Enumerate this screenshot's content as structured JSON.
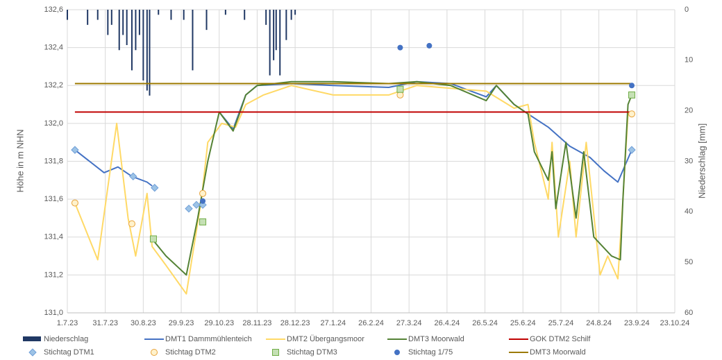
{
  "chart_data": {
    "type": "combo",
    "y_label": "Höhe in m NHN",
    "y2_label": "Niederschlag [mm]",
    "xlim": [
      "1.7.23",
      "23.10.24"
    ],
    "xticks": [
      "1.7.23",
      "31.7.23",
      "30.8.23",
      "29.9.23",
      "29.10.23",
      "28.11.23",
      "28.12.23",
      "27.1.24",
      "26.2.24",
      "27.3.24",
      "26.4.24",
      "26.5.24",
      "25.6.24",
      "25.7.24",
      "24.8.24",
      "23.9.24",
      "23.10.24"
    ],
    "ylim": [
      131.0,
      132.6
    ],
    "yticks": [
      {
        "value": 131.0,
        "label": "131,0"
      },
      {
        "value": 131.2,
        "label": "131,2"
      },
      {
        "value": 131.4,
        "label": "131,4"
      },
      {
        "value": 131.6,
        "label": "131,6"
      },
      {
        "value": 131.8,
        "label": "131,8"
      },
      {
        "value": 132.0,
        "label": "132,0"
      },
      {
        "value": 132.2,
        "label": "132,2"
      },
      {
        "value": 132.4,
        "label": "132,4"
      },
      {
        "value": 132.6,
        "label": "132,6"
      }
    ],
    "y2lim": [
      0,
      60
    ],
    "y2_inverted": true,
    "y2ticks": [
      0,
      10,
      20,
      30,
      40,
      50,
      60
    ],
    "grid": true,
    "series": [
      {
        "name": "Niederschlag",
        "type": "bar",
        "axis": "y2",
        "color": "#203864",
        "x": [
          "1.7.23",
          "17.7.23",
          "25.7.23",
          "2.8.23",
          "5.8.23",
          "11.8.23",
          "14.8.23",
          "17.8.23",
          "21.8.23",
          "24.8.23",
          "27.8.23",
          "30.8.23",
          "2.9.23",
          "4.9.23",
          "11.9.23",
          "21.9.23",
          "1.10.23",
          "8.10.23",
          "19.10.23",
          "3.11.23",
          "18.11.23",
          "5.12.23",
          "8.12.23",
          "11.12.23",
          "13.12.23",
          "16.12.23",
          "21.12.23",
          "25.12.23",
          "28.12.23"
        ],
        "values": [
          2,
          3,
          2,
          5,
          3,
          8,
          5,
          7,
          12,
          8,
          5,
          14,
          16,
          17,
          1,
          2,
          2,
          12,
          4,
          1,
          2,
          3,
          13,
          10,
          8,
          13,
          6,
          2,
          1
        ]
      },
      {
        "name": "DMT1 Dammmühlenteich",
        "type": "line",
        "color": "#4472c4",
        "x": [
          "7.7.23",
          "30.7.23",
          "10.8.23",
          "21.8.23",
          "2.9.23",
          "6.9.23",
          "14.9.23",
          "29.10.23",
          "9.11.23",
          "19.11.23",
          "28.11.23",
          "25.12.23",
          "27.1.24",
          "11.3.24",
          "2.4.24",
          "29.4.24",
          "27.5.24",
          "4.6.24",
          "18.6.24",
          "29.6.24",
          "15.7.24",
          "1.8.24",
          "17.8.24",
          "28.8.24",
          "8.9.24",
          "19.9.24"
        ],
        "values": [
          131.86,
          131.74,
          131.77,
          131.72,
          131.69,
          131.67,
          null,
          132.06,
          131.97,
          132.15,
          132.2,
          132.21,
          132.2,
          132.19,
          132.22,
          132.21,
          132.14,
          132.2,
          132.1,
          132.05,
          131.98,
          131.88,
          131.82,
          131.75,
          131.69,
          131.86
        ]
      },
      {
        "name": "DMT2 Übergangsmoor",
        "type": "line",
        "color": "#ffd966",
        "x": [
          "7.7.23",
          "25.7.23",
          "9.8.23",
          "18.8.23",
          "24.8.23",
          "2.9.23",
          "6.9.23",
          "17.9.23",
          "3.10.23",
          "15.10.23",
          "20.10.23",
          "31.10.23",
          "11.11.23",
          "19.11.23",
          "3.12.23",
          "25.12.23",
          "27.1.24",
          "11.3.24",
          "2.4.24",
          "27.5.24",
          "18.6.24",
          "29.6.24",
          "4.7.24",
          "15.7.24",
          "18.7.24",
          "23.7.24",
          "1.8.24",
          "6.8.24",
          "14.8.24",
          "25.8.24",
          "31.8.24",
          "8.9.24",
          "12.9.24",
          "16.9.24",
          "19.9.24"
        ],
        "values": [
          131.58,
          131.28,
          132.0,
          131.5,
          131.3,
          131.63,
          131.35,
          131.25,
          131.1,
          131.6,
          131.9,
          132.0,
          131.98,
          132.1,
          132.15,
          132.2,
          132.15,
          132.15,
          132.2,
          132.17,
          132.08,
          132.1,
          131.9,
          131.6,
          131.9,
          131.4,
          131.8,
          131.4,
          131.9,
          131.2,
          131.3,
          131.18,
          131.6,
          132.05,
          132.06
        ]
      },
      {
        "name": "DMT3 Moorwald",
        "type": "line",
        "color": "#548235",
        "x": [
          "6.9.23",
          "17.9.23",
          "3.10.23",
          "12.10.23",
          "20.10.23",
          "29.10.23",
          "9.11.23",
          "14.11.23",
          "19.11.23",
          "28.11.23",
          "25.12.23",
          "27.1.24",
          "11.3.24",
          "2.4.24",
          "29.4.24",
          "27.5.24",
          "4.6.24",
          "18.6.24",
          "29.6.24",
          "4.7.24",
          "15.7.24",
          "18.7.24",
          "21.7.24",
          "29.7.24",
          "6.8.24",
          "12.8.24",
          "20.8.24",
          "3.9.24",
          "10.9.24",
          "12.9.24",
          "16.9.24",
          "19.9.24"
        ],
        "values": [
          131.39,
          131.3,
          131.2,
          131.5,
          131.8,
          132.06,
          131.96,
          132.05,
          132.15,
          132.2,
          132.22,
          132.22,
          132.21,
          132.22,
          132.2,
          132.12,
          132.2,
          132.1,
          132.05,
          131.85,
          131.7,
          131.85,
          131.55,
          131.9,
          131.5,
          131.85,
          131.4,
          131.3,
          131.28,
          131.6,
          132.1,
          132.15
        ]
      },
      {
        "name": "GOK DTM2 Schilf",
        "type": "line",
        "color": "#c00000",
        "x": [
          "7.7.23",
          "19.9.24"
        ],
        "values": [
          132.06,
          132.06
        ]
      },
      {
        "name": "Stichtag DTM1",
        "type": "scatter",
        "marker": "diamond",
        "color": "#9dc3e6",
        "x": [
          "7.7.23",
          "22.8.23",
          "8.9.23",
          "5.10.23",
          "11.10.23",
          "16.10.23",
          "19.9.24"
        ],
        "values": [
          131.86,
          131.72,
          131.66,
          131.55,
          131.57,
          131.57,
          131.86
        ]
      },
      {
        "name": "Stichtag DTM2",
        "type": "scatter",
        "marker": "circle",
        "color": "#fff2cc",
        "x": [
          "7.7.23",
          "21.8.23",
          "16.10.23",
          "20.3.24",
          "19.9.24"
        ],
        "values": [
          131.58,
          131.47,
          131.63,
          132.15,
          132.05
        ]
      },
      {
        "name": "Stichtag DTM3",
        "type": "scatter",
        "marker": "square",
        "color": "#c5e0b4",
        "x": [
          "7.9.23",
          "16.10.23",
          "20.3.24",
          "19.9.24"
        ],
        "values": [
          131.39,
          131.48,
          132.18,
          132.15
        ]
      },
      {
        "name": "Stichtag 1/75",
        "type": "scatter",
        "marker": "dot",
        "color": "#4472c4",
        "x": [
          "16.10.23",
          "20.3.24",
          "12.4.24",
          "19.9.24"
        ],
        "values": [
          131.59,
          132.4,
          132.41,
          132.2
        ]
      },
      {
        "name": "DMT3 Moorwald",
        "type": "line",
        "color": "#9c7a00",
        "x": [
          "7.7.23",
          "19.9.24"
        ],
        "values": [
          132.21,
          132.21
        ]
      }
    ]
  }
}
